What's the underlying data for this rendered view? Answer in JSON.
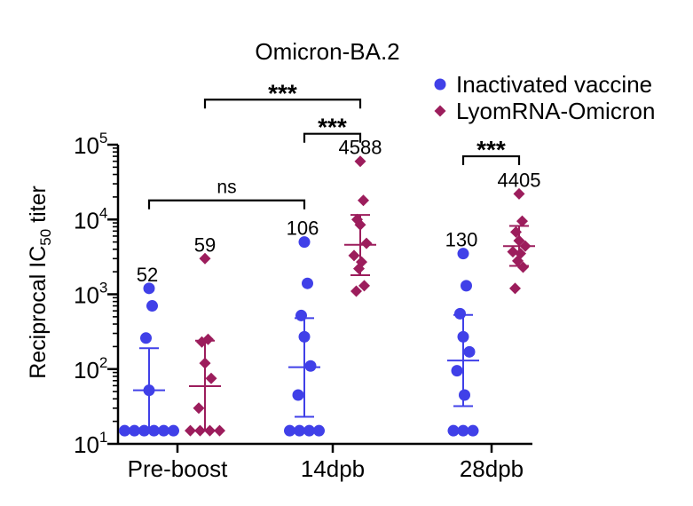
{
  "chart_data": {
    "type": "scatter",
    "title": "Omicron-BA.2",
    "ylabel_main": "Reciprocal IC",
    "ylabel_sub": "50",
    "ylabel_tail": " titer",
    "yscale": "log",
    "ylim": [
      10,
      100000
    ],
    "y_ticks": [
      {
        "value": 10,
        "base": "10",
        "exp": "1"
      },
      {
        "value": 100,
        "base": "10",
        "exp": "2"
      },
      {
        "value": 1000,
        "base": "10",
        "exp": "3"
      },
      {
        "value": 10000,
        "base": "10",
        "exp": "4"
      },
      {
        "value": 100000,
        "base": "10",
        "exp": "5"
      }
    ],
    "categories": [
      "Pre-boost",
      "14dpb",
      "28dpb"
    ],
    "series": [
      {
        "name": "Inactivated vaccine",
        "color": "#4040e8",
        "marker": "circle",
        "groups": [
          {
            "category": "Pre-boost",
            "points": [
              15,
              15,
              15,
              15,
              15,
              15,
              52,
              260,
              700,
              1200
            ],
            "center": 52,
            "err_low": 15,
            "err_high": 190,
            "label": "52"
          },
          {
            "category": "14dpb",
            "points": [
              15,
              15,
              15,
              15,
              45,
              110,
              270,
              520,
              1400,
              5000
            ],
            "center": 106,
            "err_low": 23,
            "err_high": 480,
            "label": "106"
          },
          {
            "category": "28dpb",
            "points": [
              15,
              15,
              15,
              45,
              95,
              170,
              270,
              550,
              1300,
              3500
            ],
            "center": 130,
            "err_low": 32,
            "err_high": 530,
            "label": "130"
          }
        ]
      },
      {
        "name": "LyomRNA-Omicron",
        "color": "#9c1d5c",
        "marker": "diamond",
        "groups": [
          {
            "category": "Pre-boost",
            "points": [
              15,
              15,
              15,
              15,
              30,
              75,
              120,
              230,
              250,
              3000
            ],
            "center": 59,
            "err_low": 15,
            "err_high": 240,
            "label": "59"
          },
          {
            "category": "14dpb",
            "points": [
              1100,
              1300,
              2200,
              2700,
              3300,
              4800,
              8500,
              10000,
              18000,
              60000
            ],
            "center": 4588,
            "err_low": 1800,
            "err_high": 11500,
            "label": "4588"
          },
          {
            "category": "28dpb",
            "points": [
              1200,
              2300,
              2800,
              3500,
              3700,
              4400,
              5200,
              6800,
              9500,
              22000
            ],
            "center": 4405,
            "err_low": 2400,
            "err_high": 8200,
            "label": "4405"
          }
        ]
      }
    ],
    "significance": [
      {
        "from": "Pre-boost:Inactivated vaccine",
        "to": "14dpb:Inactivated vaccine",
        "label": "ns",
        "y": 18000
      },
      {
        "from": "Pre-boost:LyomRNA-Omicron",
        "to": "14dpb:LyomRNA-Omicron",
        "label": "***",
        "y": 400000
      },
      {
        "from": "14dpb:Inactivated vaccine",
        "to": "14dpb:LyomRNA-Omicron",
        "label": "***",
        "y": 140000
      },
      {
        "from": "28dpb:Inactivated vaccine",
        "to": "28dpb:LyomRNA-Omicron",
        "label": "***",
        "y": 70000
      }
    ],
    "legend_position": "top-right"
  }
}
